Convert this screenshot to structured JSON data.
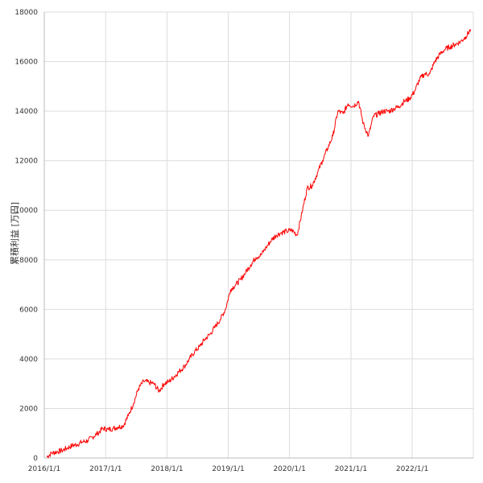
{
  "chart_data": {
    "type": "line",
    "ylabel": "累積利益 [万円]",
    "xlabel": "",
    "ylim": [
      0,
      18000
    ],
    "yticks": [
      0,
      2000,
      4000,
      6000,
      8000,
      10000,
      12000,
      14000,
      16000,
      18000
    ],
    "ytick_labels": [
      "0",
      "2000",
      "4000",
      "6000",
      "8000",
      "10000",
      "12000",
      "14000",
      "16000",
      "18000"
    ],
    "xlim": [
      "2016-01-01",
      "2022-12-31"
    ],
    "xticks": [
      "2016-01-01",
      "2017-01-01",
      "2018-01-01",
      "2019-01-01",
      "2020-01-01",
      "2021-01-01",
      "2022-01-01"
    ],
    "xtick_labels": [
      "2016/1/1",
      "2017/1/1",
      "2018/1/1",
      "2019/1/1",
      "2020/1/1",
      "2021/1/1",
      "2022/1/1"
    ],
    "grid": true,
    "line_color": "#ff0000",
    "grid_color": "#dddddd",
    "series": [
      {
        "x": [
          "2016-01-15",
          "2016-02-15",
          "2016-03-15",
          "2016-04-15",
          "2016-05-15",
          "2016-06-15",
          "2016-07-15",
          "2016-08-15",
          "2016-09-15",
          "2016-10-15",
          "2016-11-15",
          "2016-12-15",
          "2017-01-15",
          "2017-02-15",
          "2017-03-15",
          "2017-04-15",
          "2017-05-15",
          "2017-06-15",
          "2017-07-15",
          "2017-08-15",
          "2017-09-15",
          "2017-10-15",
          "2017-11-15",
          "2017-12-15",
          "2018-01-15",
          "2018-02-15",
          "2018-03-15",
          "2018-04-15",
          "2018-05-15",
          "2018-06-15",
          "2018-07-15",
          "2018-08-15",
          "2018-09-15",
          "2018-10-15",
          "2018-11-15",
          "2018-12-15",
          "2019-01-15",
          "2019-02-15",
          "2019-03-15",
          "2019-04-15",
          "2019-05-15",
          "2019-06-15",
          "2019-07-15",
          "2019-08-15",
          "2019-09-15",
          "2019-10-15",
          "2019-11-15",
          "2019-12-15",
          "2020-01-15",
          "2020-02-15",
          "2020-03-15",
          "2020-04-15",
          "2020-05-15",
          "2020-06-15",
          "2020-07-15",
          "2020-08-15",
          "2020-09-15",
          "2020-10-15",
          "2020-11-15",
          "2020-12-15",
          "2021-01-15",
          "2021-02-15",
          "2021-03-15",
          "2021-04-15",
          "2021-05-15",
          "2021-06-15",
          "2021-07-15",
          "2021-08-15",
          "2021-09-15",
          "2021-10-15",
          "2021-11-15",
          "2021-12-15",
          "2022-01-15",
          "2022-02-15",
          "2022-03-15",
          "2022-04-15",
          "2022-05-15",
          "2022-06-15",
          "2022-07-15",
          "2022-08-15",
          "2022-09-15",
          "2022-10-15",
          "2022-11-15",
          "2022-12-15"
        ],
        "y": [
          50,
          200,
          250,
          300,
          400,
          500,
          550,
          650,
          700,
          850,
          1000,
          1200,
          1150,
          1200,
          1250,
          1300,
          1700,
          2200,
          2800,
          3100,
          3050,
          3000,
          2700,
          3000,
          3100,
          3300,
          3500,
          3700,
          4000,
          4300,
          4500,
          4800,
          5000,
          5300,
          5600,
          6000,
          6800,
          7000,
          7200,
          7500,
          7800,
          8100,
          8200,
          8500,
          8800,
          9000,
          9100,
          9150,
          9200,
          9000,
          9900,
          10900,
          11000,
          11500,
          12000,
          12500,
          13000,
          14000,
          13900,
          14300,
          14200,
          14400,
          13500,
          13000,
          13800,
          13900,
          14000,
          14000,
          14100,
          14200,
          14400,
          14500,
          14800,
          15300,
          15500,
          15500,
          16000,
          16300,
          16500,
          16600,
          16700,
          16800,
          17000,
          17300
        ]
      }
    ]
  }
}
